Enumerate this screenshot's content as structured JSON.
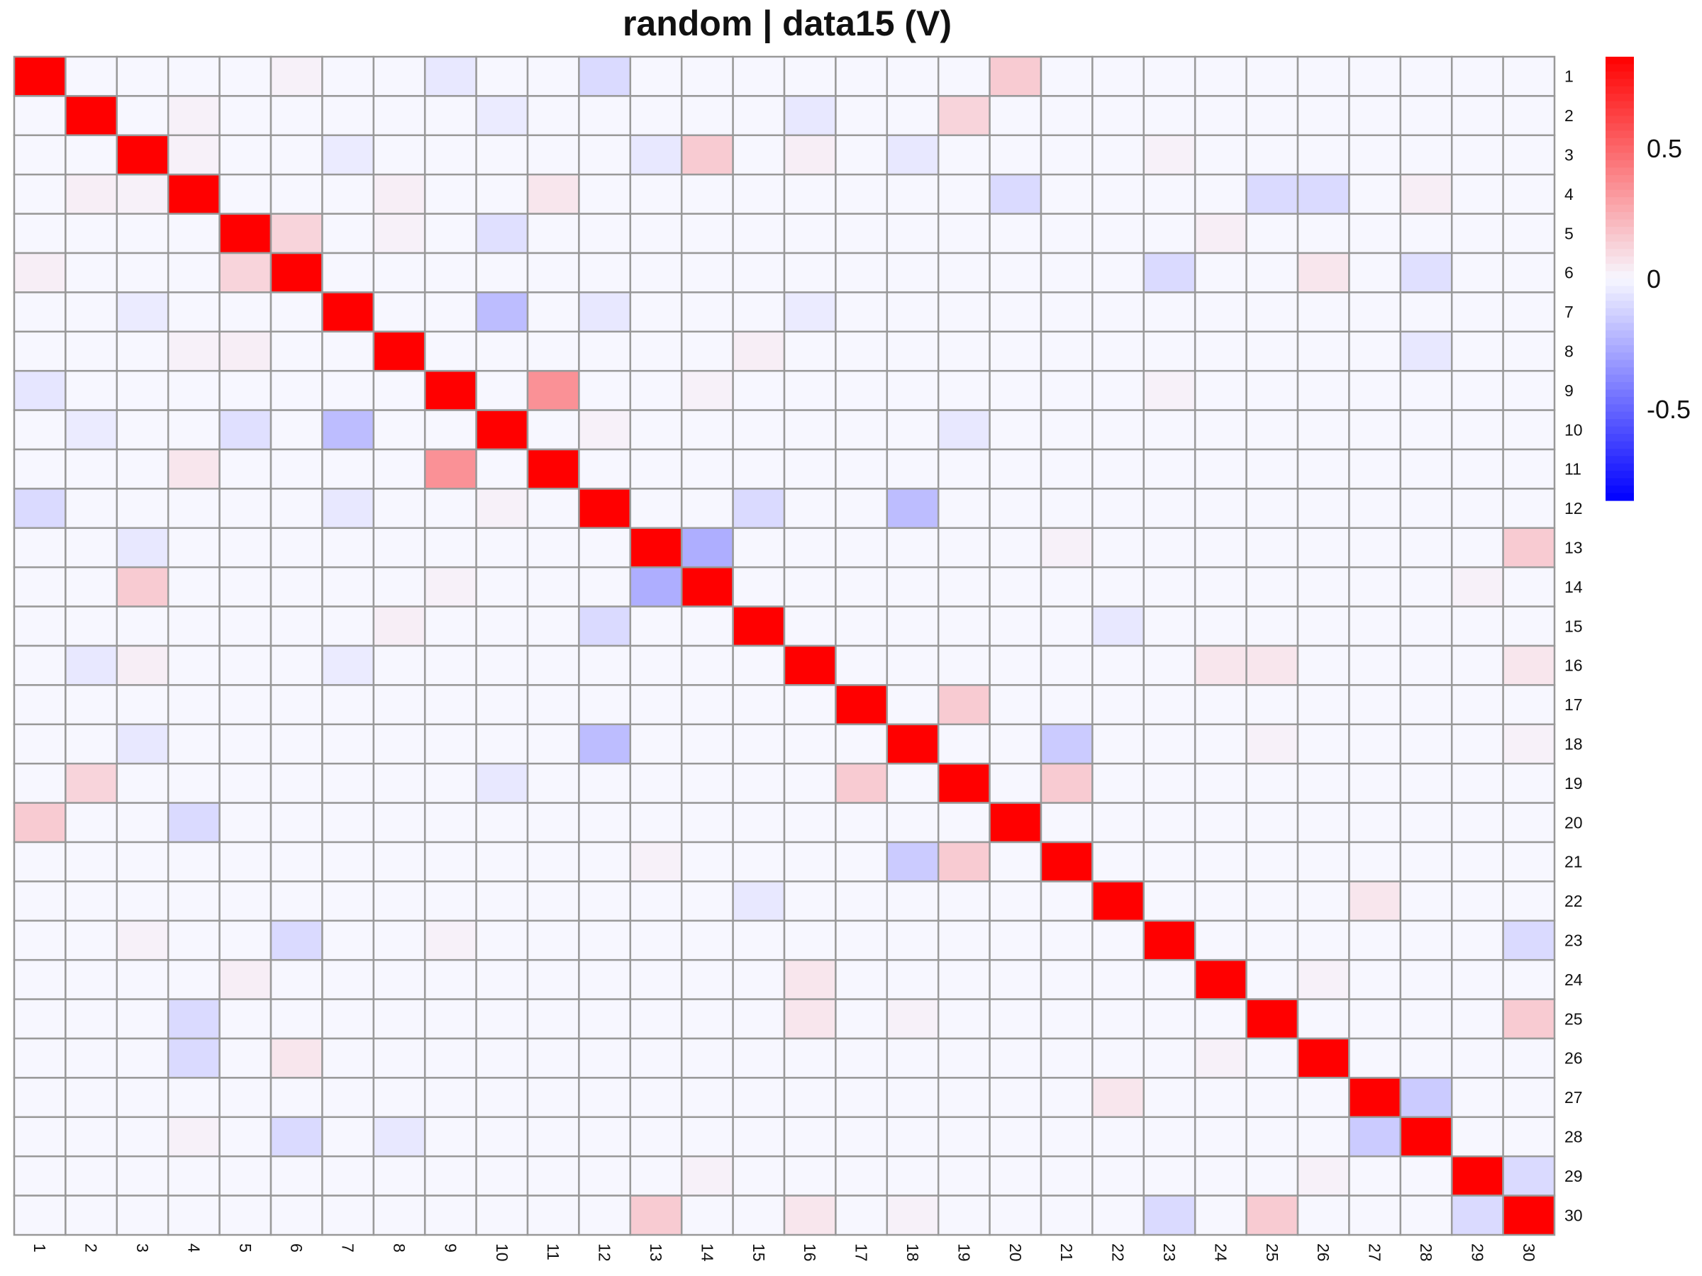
{
  "chart_data": {
    "type": "heatmap",
    "title": "random | data15 (V)",
    "row_labels": [
      "1",
      "2",
      "3",
      "4",
      "5",
      "6",
      "7",
      "8",
      "9",
      "10",
      "11",
      "12",
      "13",
      "14",
      "15",
      "16",
      "17",
      "18",
      "19",
      "20",
      "21",
      "22",
      "23",
      "24",
      "25",
      "26",
      "27",
      "28",
      "29",
      "30"
    ],
    "col_labels": [
      "1",
      "2",
      "3",
      "4",
      "5",
      "6",
      "7",
      "8",
      "9",
      "10",
      "11",
      "12",
      "13",
      "14",
      "15",
      "16",
      "17",
      "18",
      "19",
      "20",
      "21",
      "22",
      "23",
      "24",
      "25",
      "26",
      "27",
      "28",
      "29",
      "30"
    ],
    "color_scale": {
      "min": -0.85,
      "max": 0.85,
      "low": "#0000ff",
      "mid": "#f7f7ff",
      "high": "#ff0000"
    },
    "colorbar_ticks": [
      {
        "value": 0.5,
        "label": "0.5"
      },
      {
        "value": 0,
        "label": "0"
      },
      {
        "value": -0.5,
        "label": "-0.5"
      }
    ],
    "grid_color": "#999999",
    "diagonal_value": 0.85,
    "nonzero_cells": [
      [
        1,
        6,
        0.02
      ],
      [
        1,
        9,
        -0.05
      ],
      [
        1,
        12,
        -0.1
      ],
      [
        1,
        20,
        0.15
      ],
      [
        2,
        4,
        0.02
      ],
      [
        2,
        10,
        -0.04
      ],
      [
        2,
        16,
        -0.05
      ],
      [
        2,
        19,
        0.12
      ],
      [
        3,
        4,
        0.02
      ],
      [
        3,
        7,
        -0.04
      ],
      [
        3,
        13,
        -0.05
      ],
      [
        3,
        14,
        0.15
      ],
      [
        3,
        16,
        0.03
      ],
      [
        3,
        18,
        -0.05
      ],
      [
        3,
        23,
        0.02
      ],
      [
        4,
        2,
        0.03
      ],
      [
        4,
        3,
        0.02
      ],
      [
        4,
        8,
        0.03
      ],
      [
        4,
        11,
        0.06
      ],
      [
        4,
        20,
        -0.1
      ],
      [
        4,
        25,
        -0.1
      ],
      [
        4,
        26,
        -0.1
      ],
      [
        4,
        28,
        0.03
      ],
      [
        5,
        6,
        0.12
      ],
      [
        5,
        8,
        0.02
      ],
      [
        5,
        10,
        -0.08
      ],
      [
        5,
        24,
        0.03
      ],
      [
        6,
        1,
        0.03
      ],
      [
        6,
        5,
        0.12
      ],
      [
        6,
        23,
        -0.1
      ],
      [
        6,
        26,
        0.06
      ],
      [
        6,
        28,
        -0.08
      ],
      [
        7,
        3,
        -0.04
      ],
      [
        7,
        10,
        -0.2
      ],
      [
        7,
        12,
        -0.05
      ],
      [
        7,
        16,
        -0.04
      ],
      [
        8,
        4,
        0.02
      ],
      [
        8,
        5,
        0.03
      ],
      [
        8,
        15,
        0.03
      ],
      [
        8,
        28,
        -0.05
      ],
      [
        9,
        1,
        -0.06
      ],
      [
        9,
        11,
        0.35
      ],
      [
        9,
        14,
        0.02
      ],
      [
        9,
        23,
        0.02
      ],
      [
        10,
        2,
        -0.04
      ],
      [
        10,
        5,
        -0.08
      ],
      [
        10,
        7,
        -0.2
      ],
      [
        10,
        12,
        0.02
      ],
      [
        10,
        19,
        -0.05
      ],
      [
        11,
        4,
        0.06
      ],
      [
        11,
        9,
        0.35
      ],
      [
        12,
        1,
        -0.1
      ],
      [
        12,
        7,
        -0.05
      ],
      [
        12,
        10,
        0.02
      ],
      [
        12,
        15,
        -0.1
      ],
      [
        12,
        18,
        -0.2
      ],
      [
        13,
        3,
        -0.05
      ],
      [
        13,
        14,
        -0.25
      ],
      [
        13,
        21,
        0.02
      ],
      [
        13,
        30,
        0.15
      ],
      [
        14,
        3,
        0.15
      ],
      [
        14,
        9,
        0.02
      ],
      [
        14,
        13,
        -0.25
      ],
      [
        14,
        29,
        0.02
      ],
      [
        15,
        8,
        0.03
      ],
      [
        15,
        12,
        -0.1
      ],
      [
        15,
        22,
        -0.05
      ],
      [
        16,
        2,
        -0.05
      ],
      [
        16,
        3,
        0.03
      ],
      [
        16,
        7,
        -0.04
      ],
      [
        16,
        24,
        0.06
      ],
      [
        16,
        25,
        0.06
      ],
      [
        16,
        30,
        0.06
      ],
      [
        17,
        19,
        0.15
      ],
      [
        18,
        3,
        -0.05
      ],
      [
        18,
        12,
        -0.2
      ],
      [
        18,
        21,
        -0.15
      ],
      [
        18,
        25,
        0.02
      ],
      [
        18,
        30,
        0.02
      ],
      [
        19,
        2,
        0.12
      ],
      [
        19,
        10,
        -0.05
      ],
      [
        19,
        17,
        0.15
      ],
      [
        19,
        21,
        0.15
      ],
      [
        20,
        1,
        0.15
      ],
      [
        20,
        4,
        -0.1
      ],
      [
        21,
        13,
        0.02
      ],
      [
        21,
        18,
        -0.15
      ],
      [
        21,
        19,
        0.15
      ],
      [
        22,
        15,
        -0.05
      ],
      [
        22,
        27,
        0.06
      ],
      [
        23,
        3,
        0.02
      ],
      [
        23,
        6,
        -0.1
      ],
      [
        23,
        9,
        0.02
      ],
      [
        23,
        30,
        -0.1
      ],
      [
        24,
        5,
        0.03
      ],
      [
        24,
        16,
        0.06
      ],
      [
        24,
        26,
        0.02
      ],
      [
        25,
        4,
        -0.1
      ],
      [
        25,
        16,
        0.06
      ],
      [
        25,
        18,
        0.02
      ],
      [
        25,
        30,
        0.15
      ],
      [
        26,
        4,
        -0.1
      ],
      [
        26,
        6,
        0.06
      ],
      [
        26,
        24,
        0.02
      ],
      [
        27,
        22,
        0.06
      ],
      [
        27,
        28,
        -0.15
      ],
      [
        28,
        4,
        0.02
      ],
      [
        28,
        6,
        -0.1
      ],
      [
        28,
        8,
        -0.05
      ],
      [
        28,
        27,
        -0.15
      ],
      [
        29,
        14,
        0.02
      ],
      [
        29,
        26,
        0.02
      ],
      [
        29,
        30,
        -0.1
      ],
      [
        30,
        13,
        0.15
      ],
      [
        30,
        16,
        0.06
      ],
      [
        30,
        18,
        0.02
      ],
      [
        30,
        23,
        -0.1
      ],
      [
        30,
        25,
        0.15
      ],
      [
        30,
        29,
        -0.1
      ]
    ]
  }
}
